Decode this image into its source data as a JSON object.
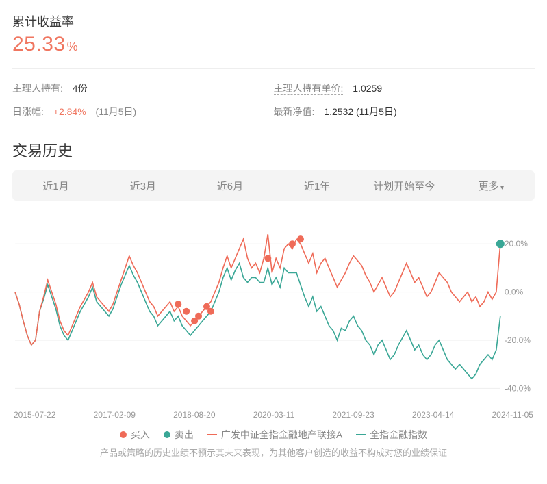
{
  "header": {
    "title": "累计收益率",
    "value": "25.33",
    "pct_sign": "%"
  },
  "info": {
    "holding_label": "主理人持有:",
    "holding_value": "4份",
    "unitprice_label": "主理人持有单价:",
    "unitprice_value": "1.0259",
    "daychange_label": "日涨幅:",
    "daychange_value": "+2.84%",
    "daychange_date": "(11月5日)",
    "nav_label": "最新净值:",
    "nav_value": "1.2532 (11月5日)"
  },
  "history": {
    "title": "交易历史",
    "tabs": [
      "近1月",
      "近3月",
      "近6月",
      "近1年",
      "计划开始至今",
      "更多"
    ]
  },
  "chart": {
    "y_ticks": [
      {
        "v": 20.0,
        "label": "20.0%"
      },
      {
        "v": 0.0,
        "label": "0.0%"
      },
      {
        "v": -20.0,
        "label": "-20.0%"
      },
      {
        "v": -40.0,
        "label": "-40.0%"
      }
    ],
    "ylim": [
      -45,
      30
    ],
    "x_labels": [
      "2015-07-22",
      "2017-02-09",
      "2018-08-20",
      "2020-03-11",
      "2021-09-23",
      "2023-04-14",
      "2024-11-05"
    ],
    "colors": {
      "series_red": "#ef6b58",
      "series_teal": "#3aa796",
      "buy_dot": "#ef6b58",
      "sell_dot": "#3aa796",
      "grid": "#eeeeee",
      "axis_text": "#999999"
    },
    "series_red": [
      0,
      -5,
      -12,
      -18,
      -22,
      -20,
      -8,
      -2,
      5,
      0,
      -5,
      -12,
      -16,
      -18,
      -14,
      -10,
      -6,
      -3,
      0,
      4,
      -2,
      -4,
      -6,
      -8,
      -5,
      0,
      5,
      10,
      15,
      11,
      8,
      4,
      0,
      -4,
      -6,
      -10,
      -8,
      -6,
      -4,
      -8,
      -6,
      -10,
      -12,
      -14,
      -12,
      -10,
      -8,
      -6,
      -4,
      0,
      4,
      10,
      15,
      10,
      14,
      18,
      22,
      14,
      10,
      12,
      8,
      14,
      24,
      8,
      14,
      10,
      18,
      20,
      18,
      22,
      20,
      16,
      12,
      16,
      8,
      12,
      14,
      10,
      6,
      2,
      5,
      8,
      12,
      15,
      13,
      11,
      7,
      4,
      0,
      3,
      6,
      2,
      -2,
      0,
      4,
      8,
      12,
      8,
      4,
      6,
      2,
      -2,
      0,
      4,
      8,
      6,
      4,
      0,
      -2,
      -4,
      -2,
      0,
      -4,
      -2,
      -6,
      -4,
      0,
      -3,
      0,
      20
    ],
    "series_teal": [
      0,
      -5,
      -12,
      -18,
      -22,
      -20,
      -8,
      -3,
      3,
      -2,
      -7,
      -14,
      -18,
      -20,
      -16,
      -12,
      -8,
      -5,
      -2,
      2,
      -4,
      -6,
      -8,
      -10,
      -7,
      -2,
      3,
      7,
      11,
      7,
      4,
      0,
      -4,
      -8,
      -10,
      -14,
      -12,
      -10,
      -8,
      -12,
      -10,
      -14,
      -16,
      -18,
      -16,
      -14,
      -12,
      -10,
      -8,
      -4,
      0,
      6,
      10,
      5,
      9,
      12,
      6,
      4,
      6,
      6,
      4,
      4,
      10,
      3,
      6,
      2,
      10,
      8,
      8,
      8,
      3,
      -2,
      -6,
      -2,
      -8,
      -6,
      -10,
      -14,
      -16,
      -20,
      -15,
      -16,
      -12,
      -10,
      -14,
      -16,
      -20,
      -22,
      -26,
      -22,
      -20,
      -24,
      -28,
      -26,
      -22,
      -19,
      -16,
      -20,
      -24,
      -22,
      -26,
      -28,
      -26,
      -22,
      -20,
      -24,
      -28,
      -30,
      -32,
      -30,
      -32,
      -34,
      -36,
      -34,
      -30,
      -28,
      -26,
      -28,
      -24,
      -10
    ],
    "buy_markers": [
      {
        "x": 40,
        "y": -5
      },
      {
        "x": 42,
        "y": -8
      },
      {
        "x": 44,
        "y": -12
      },
      {
        "x": 45,
        "y": -10
      },
      {
        "x": 47,
        "y": -6
      },
      {
        "x": 48,
        "y": -8
      },
      {
        "x": 62,
        "y": 14
      },
      {
        "x": 68,
        "y": 20
      },
      {
        "x": 70,
        "y": 22
      }
    ],
    "sell_markers": [
      {
        "x": 119,
        "y": 20
      }
    ]
  },
  "legend": {
    "buy": "买入",
    "sell": "卖出",
    "red_name": "广发中证全指金融地产联接A",
    "teal_name": "全指金融指数"
  },
  "disclaimer": "产品或策略的历史业绩不预示其未来表现，为其他客户创造的收益不构成对您的业绩保证"
}
